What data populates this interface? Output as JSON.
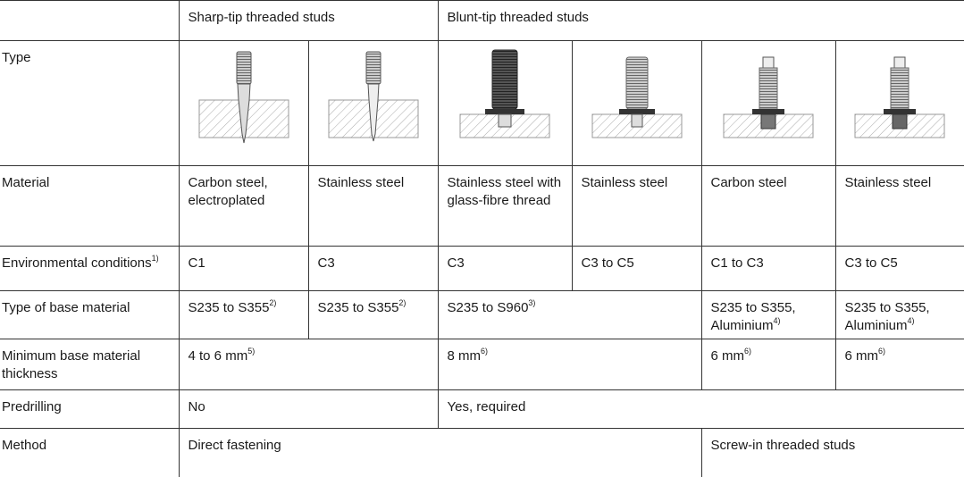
{
  "table": {
    "header": [
      "Sharp-tip threaded studs",
      "Blunt-tip threaded studs"
    ],
    "rows": [
      {
        "label": {
          "text": "Type"
        }
      },
      {
        "label": {
          "text": "Material"
        },
        "cells": [
          {
            "text": "Carbon steel, electroplated"
          },
          {
            "text": "Stainless steel"
          },
          {
            "text": "Stainless steel with glass-fibre thread"
          },
          {
            "text": "Stainless steel"
          },
          {
            "text": "Carbon steel"
          },
          {
            "text": "Stainless steel"
          }
        ]
      },
      {
        "label": {
          "text": "Environmental conditions",
          "sup": "1)"
        },
        "cells": [
          {
            "text": "C1"
          },
          {
            "text": "C3"
          },
          {
            "text": "C3"
          },
          {
            "text": "C3 to C5"
          },
          {
            "text": "C1 to C3"
          },
          {
            "text": "C3 to C5"
          }
        ]
      },
      {
        "label": {
          "text": "Type of base material"
        },
        "cells": [
          {
            "text": "S235 to S355",
            "sup": "2)"
          },
          {
            "text": "S235 to S355",
            "sup": "2)"
          },
          {
            "text": "S235 to S960",
            "sup": "3)"
          },
          {
            "text": "S235 to S355, Aluminium",
            "sup": "4)"
          },
          {
            "text": "S235 to S355, Aluminium",
            "sup": "4)"
          }
        ]
      },
      {
        "label": {
          "text": "Minimum base material thickness"
        },
        "cells": [
          {
            "text": "4 to 6 mm",
            "sup": "5)"
          },
          {
            "text": "8 mm",
            "sup": "6)"
          },
          {
            "text": "6 mm",
            "sup": "6)"
          },
          {
            "text": "6 mm",
            "sup": "6)"
          }
        ]
      },
      {
        "label": {
          "text": "Predrilling"
        },
        "cells": [
          {
            "text": "No"
          },
          {
            "text": "Yes, required"
          }
        ]
      },
      {
        "label": {
          "text": "Method"
        },
        "cells": [
          {
            "text": "Direct fastening"
          },
          {
            "text": "Screw-in threaded studs"
          }
        ]
      }
    ]
  }
}
